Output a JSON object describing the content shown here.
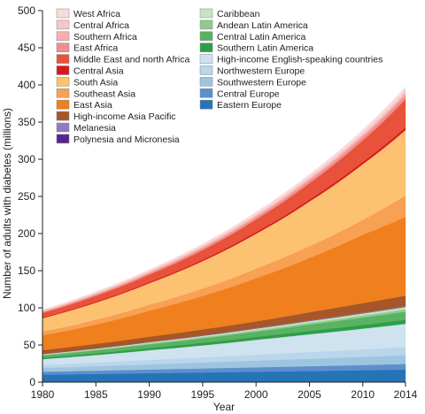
{
  "chart_data": {
    "type": "area",
    "stacked": true,
    "xlabel": "Year",
    "ylabel": "Number of adults with diabetes (millions)",
    "xlim": [
      1980,
      2014
    ],
    "ylim": [
      0,
      500
    ],
    "x_ticks": [
      1980,
      1985,
      1990,
      1995,
      2000,
      2005,
      2010,
      2014
    ],
    "y_ticks": [
      0,
      50,
      100,
      150,
      200,
      250,
      300,
      350,
      400,
      450,
      500
    ],
    "x": [
      1980,
      1985,
      1990,
      1995,
      2000,
      2005,
      2010,
      2014
    ],
    "legend_position": "top-left, two columns",
    "series": [
      {
        "name": "Eastern Europe",
        "color": "#2574b7",
        "values": [
          10,
          11,
          12,
          13,
          14,
          15,
          16,
          17
        ]
      },
      {
        "name": "Central Europe",
        "color": "#5d8fcc",
        "values": [
          4,
          4.5,
          5,
          5.5,
          6,
          6.5,
          7,
          7.5
        ]
      },
      {
        "name": "Southwestern Europe",
        "color": "#9ec5e0",
        "values": [
          5,
          6,
          7,
          8,
          9,
          10,
          11,
          12
        ]
      },
      {
        "name": "Northwestern Europe",
        "color": "#b9d6ea",
        "values": [
          4,
          5,
          6,
          7,
          8,
          9,
          10,
          11
        ]
      },
      {
        "name": "High-income English-speaking countries",
        "color": "#cfe2f0",
        "values": [
          8,
          10,
          13,
          16,
          20,
          24,
          28,
          31
        ]
      },
      {
        "name": "Southern Latin America",
        "color": "#2d9e48",
        "values": [
          2,
          2.5,
          3,
          3.5,
          4,
          4.5,
          5,
          5.5
        ]
      },
      {
        "name": "Central Latin America",
        "color": "#5ab262",
        "values": [
          3,
          4,
          5,
          6,
          7,
          8.5,
          10,
          11
        ]
      },
      {
        "name": "Andean Latin America",
        "color": "#8fcc8c",
        "values": [
          0.8,
          1,
          1.3,
          1.6,
          2,
          2.4,
          2.8,
          3.2
        ]
      },
      {
        "name": "Caribbean",
        "color": "#c4e6bf",
        "values": [
          1,
          1.2,
          1.5,
          1.8,
          2.1,
          2.4,
          2.7,
          3
        ]
      },
      {
        "name": "Polynesia and Micronesia",
        "color": "#54278f",
        "values": [
          0.1,
          0.12,
          0.15,
          0.18,
          0.2,
          0.25,
          0.3,
          0.35
        ]
      },
      {
        "name": "Melanesia",
        "color": "#8e7cc3",
        "values": [
          0.2,
          0.25,
          0.3,
          0.4,
          0.5,
          0.6,
          0.7,
          0.8
        ]
      },
      {
        "name": "High-income Asia Pacific",
        "color": "#a65628",
        "values": [
          5,
          6,
          7,
          8,
          9,
          11,
          13,
          14
        ]
      },
      {
        "name": "East Asia",
        "color": "#f07f1e",
        "values": [
          20,
          26,
          35,
          45,
          58,
          73,
          92,
          106
        ]
      },
      {
        "name": "Southeast Asia",
        "color": "#f8a054",
        "values": [
          5,
          6.5,
          8,
          10,
          13,
          16,
          20,
          29
        ]
      },
      {
        "name": "South Asia",
        "color": "#fdc271",
        "values": [
          18,
          23,
          29,
          37,
          47,
          60,
          75,
          88
        ]
      },
      {
        "name": "Central Asia",
        "color": "#d7191c",
        "values": [
          1,
          1.2,
          1.5,
          1.8,
          2.2,
          2.6,
          3,
          3.5
        ]
      },
      {
        "name": "Middle East and north Africa",
        "color": "#e8523a",
        "values": [
          6,
          8,
          10,
          13,
          17,
          22,
          29,
          38
        ]
      },
      {
        "name": "East Africa",
        "color": "#f28d8d",
        "values": [
          1.5,
          1.8,
          2.2,
          2.7,
          3.2,
          3.9,
          4.7,
          5.5
        ]
      },
      {
        "name": "Southern Africa",
        "color": "#f6b0b0",
        "values": [
          1,
          1.2,
          1.5,
          1.8,
          2.1,
          2.5,
          2.9,
          3.3
        ]
      },
      {
        "name": "Central Africa",
        "color": "#f9c7c7",
        "values": [
          0.8,
          1,
          1.2,
          1.5,
          1.8,
          2.1,
          2.5,
          2.9
        ]
      },
      {
        "name": "West Africa",
        "color": "#fbdada",
        "values": [
          1.3,
          1.6,
          2,
          2.5,
          3,
          3.6,
          4.3,
          5
        ]
      }
    ],
    "legend_columns": [
      [
        "West Africa",
        "Central Africa",
        "Southern Africa",
        "East Africa",
        "Middle East and north Africa",
        "Central Asia",
        "South Asia",
        "Southeast Asia",
        "East Asia",
        "High-income Asia Pacific",
        "Melanesia",
        "Polynesia and Micronesia"
      ],
      [
        "Caribbean",
        "Andean Latin America",
        "Central Latin America",
        "Southern Latin America",
        "High-income English-speaking countries",
        "Northwestern Europe",
        "Southwestern Europe",
        "Central Europe",
        "Eastern Europe"
      ]
    ]
  }
}
